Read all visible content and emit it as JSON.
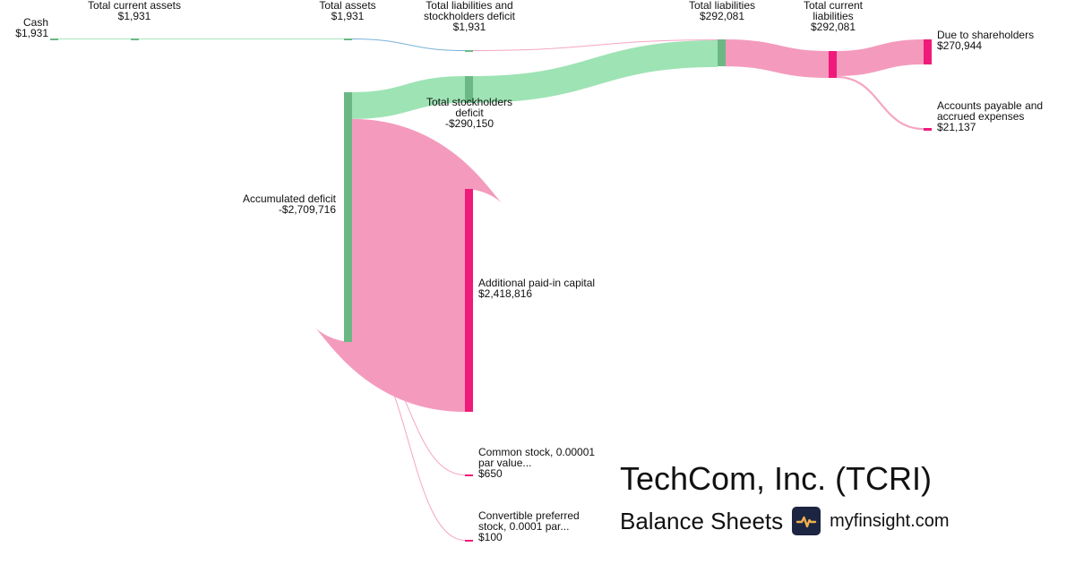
{
  "header": {
    "title": "TechCom, Inc. (TCRI)",
    "subtitle": "Balance Sheets",
    "brand": "myfinsight.com",
    "logo_icon": "pulse-icon"
  },
  "colors": {
    "green_node": "#6cb885",
    "green_link": "#9ee3b4",
    "pink_node": "#f01a7a",
    "pink_link": "#f49bbd",
    "blue_link": "#6aa8d4",
    "logo_bg": "#1c2541",
    "logo_line": "#f2b04e"
  },
  "chart_data": {
    "type": "sankey",
    "title": "",
    "nodes": [
      {
        "id": "cash",
        "label": "Cash",
        "value_label": "$1,931",
        "value": 1931,
        "side": "positive"
      },
      {
        "id": "tca",
        "label": "Total current assets",
        "value_label": "$1,931",
        "value": 1931,
        "side": "positive"
      },
      {
        "id": "ta",
        "label": "Total assets",
        "value_label": "$1,931",
        "value": 1931,
        "side": "positive"
      },
      {
        "id": "tlsd",
        "label": "Total liabilities and stockholders deficit",
        "value_label": "$1,931",
        "value": 1931,
        "side": "positive"
      },
      {
        "id": "tl",
        "label": "Total liabilities",
        "value_label": "$292,081",
        "value": 292081,
        "side": "positive"
      },
      {
        "id": "tcl",
        "label": "Total current liabilities",
        "value_label": "$292,081",
        "value": 292081,
        "side": "liability"
      },
      {
        "id": "dts",
        "label": "Due to shareholders",
        "value_label": "$270,944",
        "value": 270944,
        "side": "liability"
      },
      {
        "id": "ap",
        "label": "Accounts payable and accrued expenses",
        "value_label": "$21,137",
        "value": 21137,
        "side": "liability"
      },
      {
        "id": "tsd",
        "label": "Total stockholders deficit",
        "value_label": "-$290,150",
        "value": -290150,
        "side": "positive"
      },
      {
        "id": "ad",
        "label": "Accumulated deficit",
        "value_label": "-$2,709,716",
        "value": -2709716,
        "side": "positive"
      },
      {
        "id": "apic",
        "label": "Additional paid-in capital",
        "value_label": "$2,418,816",
        "value": 2418816,
        "side": "liability"
      },
      {
        "id": "cs",
        "label": "Common stock, 0.00001 par value...",
        "value_label": "$650",
        "value": 650,
        "side": "liability"
      },
      {
        "id": "cps",
        "label": "Convertible preferred stock, 0.0001 par...",
        "value_label": "$100",
        "value": 100,
        "side": "liability"
      }
    ],
    "links": [
      {
        "source": "cash",
        "target": "tca",
        "value": 1931
      },
      {
        "source": "tca",
        "target": "ta",
        "value": 1931
      },
      {
        "source": "ta",
        "target": "tlsd",
        "value": 1931
      },
      {
        "source": "tlsd",
        "target": "tl",
        "value": 1931
      },
      {
        "source": "tsd",
        "target": "tl",
        "value": 290150
      },
      {
        "source": "ad",
        "target": "tsd",
        "value": 290150
      },
      {
        "source": "ad",
        "target": "apic",
        "value": 2418816
      },
      {
        "source": "ad",
        "target": "cs",
        "value": 650
      },
      {
        "source": "ad",
        "target": "cps",
        "value": 100
      },
      {
        "source": "tl",
        "target": "tcl",
        "value": 292081
      },
      {
        "source": "tcl",
        "target": "dts",
        "value": 270944
      },
      {
        "source": "tcl",
        "target": "ap",
        "value": 21137
      }
    ]
  }
}
